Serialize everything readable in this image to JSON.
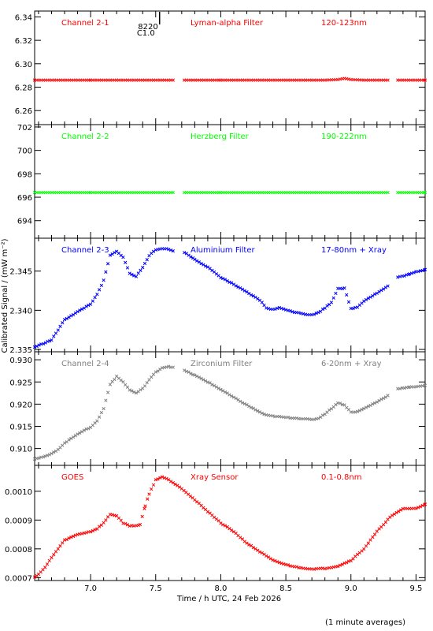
{
  "figure": {
    "ylabel": "Calibrated Signal / (mW m⁻²)",
    "xlabel": "Time / h UTC, 24 Feb 2026",
    "footnote": "(1 minute averages)",
    "flare_marker": {
      "label_top": "8220",
      "label_bottom": "C1.0",
      "time": 7.53
    },
    "xticks": [
      "7.0",
      "7.5",
      "8.0",
      "8.5",
      "9.0",
      "9.5"
    ]
  },
  "chart_data": [
    {
      "type": "scatter",
      "panel_labels": [
        "Channel 2-1",
        "Lyman-alpha Filter",
        "120-123nm"
      ],
      "color": "#ff0000",
      "xlim": [
        6.57,
        9.57
      ],
      "ylim": [
        6.248,
        6.345
      ],
      "yticks": [
        "6.26",
        "6.28",
        "6.30",
        "6.32",
        "6.34"
      ],
      "gaps": [
        [
          7.64,
          7.72
        ],
        [
          9.3,
          9.36
        ]
      ],
      "points": [
        [
          6.57,
          6.286
        ],
        [
          7.0,
          6.286
        ],
        [
          7.5,
          6.286
        ],
        [
          7.64,
          6.286
        ],
        [
          7.72,
          6.286
        ],
        [
          8.0,
          6.286
        ],
        [
          8.5,
          6.286
        ],
        [
          8.8,
          6.286
        ],
        [
          8.9,
          6.2865
        ],
        [
          8.95,
          6.2875
        ],
        [
          9.0,
          6.2865
        ],
        [
          9.1,
          6.286
        ],
        [
          9.3,
          6.286
        ],
        [
          9.36,
          6.286
        ],
        [
          9.57,
          6.286
        ]
      ]
    },
    {
      "type": "scatter",
      "panel_labels": [
        "Channel 2-2",
        "Herzberg Filter",
        "190-222nm"
      ],
      "color": "#00ff00",
      "xlim": [
        6.57,
        9.57
      ],
      "ylim": [
        692.5,
        702.2
      ],
      "yticks": [
        "694",
        "696",
        "698",
        "700",
        "702"
      ],
      "gaps": [
        [
          7.64,
          7.72
        ],
        [
          9.3,
          9.36
        ]
      ],
      "points": [
        [
          6.57,
          696.4
        ],
        [
          7.0,
          696.4
        ],
        [
          7.5,
          696.4
        ],
        [
          7.64,
          696.4
        ],
        [
          7.72,
          696.4
        ],
        [
          8.0,
          696.4
        ],
        [
          8.5,
          696.4
        ],
        [
          9.0,
          696.4
        ],
        [
          9.3,
          696.4
        ],
        [
          9.36,
          696.4
        ],
        [
          9.57,
          696.4
        ]
      ]
    },
    {
      "type": "scatter",
      "panel_labels": [
        "Channel 2-3",
        "Aluminium Filter",
        "17-80nm + Xray"
      ],
      "color": "#0000ff",
      "xlim": [
        6.57,
        9.57
      ],
      "ylim": [
        2.3347,
        2.3492
      ],
      "yticks": [
        "2.335",
        "2.340",
        "2.345"
      ],
      "gaps": [
        [
          7.64,
          7.72
        ],
        [
          9.3,
          9.36
        ]
      ],
      "points": [
        [
          6.57,
          2.3353
        ],
        [
          6.7,
          2.3362
        ],
        [
          6.75,
          2.3375
        ],
        [
          6.8,
          2.3388
        ],
        [
          6.9,
          2.3398
        ],
        [
          7.0,
          2.3408
        ],
        [
          7.05,
          2.342
        ],
        [
          7.1,
          2.3438
        ],
        [
          7.15,
          2.347
        ],
        [
          7.2,
          2.3475
        ],
        [
          7.25,
          2.3468
        ],
        [
          7.3,
          2.3447
        ],
        [
          7.35,
          2.3443
        ],
        [
          7.4,
          2.3455
        ],
        [
          7.45,
          2.347
        ],
        [
          7.5,
          2.3477
        ],
        [
          7.55,
          2.3479
        ],
        [
          7.6,
          2.3478
        ],
        [
          7.64,
          2.3475
        ],
        [
          7.72,
          2.3474
        ],
        [
          7.8,
          2.3465
        ],
        [
          7.9,
          2.3455
        ],
        [
          8.0,
          2.3442
        ],
        [
          8.1,
          2.3433
        ],
        [
          8.2,
          2.3423
        ],
        [
          8.3,
          2.3413
        ],
        [
          8.35,
          2.3403
        ],
        [
          8.4,
          2.3401
        ],
        [
          8.45,
          2.3403
        ],
        [
          8.5,
          2.3401
        ],
        [
          8.55,
          2.3398
        ],
        [
          8.6,
          2.3397
        ],
        [
          8.65,
          2.3395
        ],
        [
          8.7,
          2.3394
        ],
        [
          8.75,
          2.3397
        ],
        [
          8.8,
          2.3403
        ],
        [
          8.85,
          2.341
        ],
        [
          8.9,
          2.3428
        ],
        [
          8.95,
          2.3428
        ],
        [
          9.0,
          2.3402
        ],
        [
          9.05,
          2.3404
        ],
        [
          9.1,
          2.3412
        ],
        [
          9.15,
          2.3417
        ],
        [
          9.2,
          2.3422
        ],
        [
          9.25,
          2.3427
        ],
        [
          9.3,
          2.3433
        ],
        [
          9.36,
          2.3442
        ],
        [
          9.45,
          2.3446
        ],
        [
          9.5,
          2.3449
        ],
        [
          9.57,
          2.3452
        ]
      ]
    },
    {
      "type": "scatter",
      "panel_labels": [
        "Channel 2-4",
        "Zirconium Filter",
        "6-20nm + Xray"
      ],
      "color": "#808080",
      "xlim": [
        6.57,
        9.57
      ],
      "ylim": [
        0.9062,
        0.9318
      ],
      "yticks": [
        "0.910",
        "0.915",
        "0.920",
        "0.925",
        "0.930"
      ],
      "gaps": [
        [
          7.64,
          7.72
        ],
        [
          9.3,
          9.36
        ]
      ],
      "points": [
        [
          6.57,
          0.9077
        ],
        [
          6.65,
          0.9082
        ],
        [
          6.7,
          0.9088
        ],
        [
          6.75,
          0.9098
        ],
        [
          6.8,
          0.9112
        ],
        [
          6.9,
          0.9133
        ],
        [
          7.0,
          0.9148
        ],
        [
          7.05,
          0.9162
        ],
        [
          7.1,
          0.919
        ],
        [
          7.15,
          0.9245
        ],
        [
          7.2,
          0.9262
        ],
        [
          7.25,
          0.925
        ],
        [
          7.3,
          0.9232
        ],
        [
          7.35,
          0.9225
        ],
        [
          7.4,
          0.9235
        ],
        [
          7.45,
          0.9255
        ],
        [
          7.5,
          0.9272
        ],
        [
          7.55,
          0.9282
        ],
        [
          7.6,
          0.9285
        ],
        [
          7.64,
          0.9282
        ],
        [
          7.72,
          0.9276
        ],
        [
          7.8,
          0.9265
        ],
        [
          7.9,
          0.925
        ],
        [
          8.0,
          0.9233
        ],
        [
          8.1,
          0.9215
        ],
        [
          8.2,
          0.9198
        ],
        [
          8.3,
          0.9182
        ],
        [
          8.35,
          0.9175
        ],
        [
          8.4,
          0.9173
        ],
        [
          8.5,
          0.917
        ],
        [
          8.6,
          0.9168
        ],
        [
          8.7,
          0.9165
        ],
        [
          8.75,
          0.9168
        ],
        [
          8.8,
          0.9178
        ],
        [
          8.85,
          0.919
        ],
        [
          8.9,
          0.9203
        ],
        [
          8.95,
          0.9198
        ],
        [
          9.0,
          0.9182
        ],
        [
          9.05,
          0.9183
        ],
        [
          9.1,
          0.919
        ],
        [
          9.2,
          0.9205
        ],
        [
          9.3,
          0.9222
        ],
        [
          9.36,
          0.9235
        ],
        [
          9.45,
          0.9238
        ],
        [
          9.57,
          0.9242
        ]
      ]
    },
    {
      "type": "scatter",
      "panel_labels": [
        "GOES",
        "Xray Sensor",
        "0.1-0.8nm"
      ],
      "color": "#ff0000",
      "xlim": [
        6.57,
        9.57
      ],
      "ylim": [
        0.00069,
        0.00109
      ],
      "yticks": [
        "0.0007",
        "0.0008",
        "0.0009",
        "0.0010"
      ],
      "gaps": [],
      "points": [
        [
          6.57,
          0.000702
        ],
        [
          6.6,
          0.000712
        ],
        [
          6.65,
          0.000735
        ],
        [
          6.7,
          0.00077
        ],
        [
          6.8,
          0.00083
        ],
        [
          6.9,
          0.00085
        ],
        [
          7.0,
          0.00086
        ],
        [
          7.05,
          0.00087
        ],
        [
          7.1,
          0.00089
        ],
        [
          7.15,
          0.00092
        ],
        [
          7.2,
          0.000915
        ],
        [
          7.25,
          0.00089
        ],
        [
          7.3,
          0.00088
        ],
        [
          7.35,
          0.00088
        ],
        [
          7.38,
          0.000885
        ],
        [
          7.42,
          0.00095
        ],
        [
          7.45,
          0.00099
        ],
        [
          7.5,
          0.00104
        ],
        [
          7.55,
          0.00105
        ],
        [
          7.6,
          0.00104
        ],
        [
          7.7,
          0.00101
        ],
        [
          7.8,
          0.00097
        ],
        [
          7.9,
          0.00093
        ],
        [
          8.0,
          0.00089
        ],
        [
          8.1,
          0.00086
        ],
        [
          8.2,
          0.00082
        ],
        [
          8.3,
          0.00079
        ],
        [
          8.4,
          0.00076
        ],
        [
          8.5,
          0.000745
        ],
        [
          8.6,
          0.000735
        ],
        [
          8.7,
          0.00073
        ],
        [
          8.8,
          0.000732
        ],
        [
          8.9,
          0.00074
        ],
        [
          9.0,
          0.00076
        ],
        [
          9.1,
          0.0008
        ],
        [
          9.2,
          0.00086
        ],
        [
          9.3,
          0.00091
        ],
        [
          9.4,
          0.00094
        ],
        [
          9.5,
          0.00094
        ],
        [
          9.57,
          0.000955
        ]
      ]
    }
  ]
}
